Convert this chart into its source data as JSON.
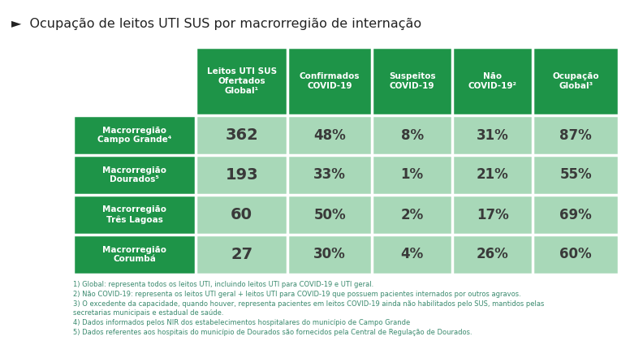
{
  "title": "►  Ocupação de leitos UTI SUS por macrorregião de internação",
  "col_headers": [
    "Leitos UTI SUS\nOfertados\nGlobal¹",
    "Confirmados\nCOVID-19",
    "Suspeitos\nCOVID-19",
    "Não\nCOVID-19²",
    "Ocupação\nGlobal³"
  ],
  "row_headers": [
    "Macrorregião\nCampo Grande⁴",
    "Macrorregião\nDourados⁵",
    "Macrorregião\nTrês Lagoas",
    "Macrorregião\nCorumbá"
  ],
  "data": [
    [
      "362",
      "48%",
      "8%",
      "31%",
      "87%"
    ],
    [
      "193",
      "33%",
      "1%",
      "21%",
      "55%"
    ],
    [
      "60",
      "50%",
      "2%",
      "17%",
      "69%"
    ],
    [
      "27",
      "30%",
      "4%",
      "26%",
      "60%"
    ]
  ],
  "footnotes": "1) Global: representa todos os leitos UTI, incluindo leitos UTI para COVID-19 e UTI geral.\n2) Não COVID-19: representa os leitos UTI geral + leitos UTI para COVID-19 que possuem pacientes internados por outros agravos.\n3) O excedente da capacidade, quando houver, representa pacientes em leitos COVID-19 ainda não habilitados pelo SUS, mantidos pelas\nsecretarias municipais e estadual de saúde.\n4) Dados informados pelos NIR dos estabelecimentos hospitalares do município de Campo Grande\n5) Dados referentes aos hospitais do município de Dourados são fornecidos pela Central de Regulação de Dourados.",
  "color_dark_green": "#1e9448",
  "color_light_green": "#a8d8b8",
  "color_bg": "#ffffff",
  "color_footnote": "#3a8a6e",
  "color_data_text": "#2d5a27",
  "color_data_text_dark": "#3a3a3a"
}
